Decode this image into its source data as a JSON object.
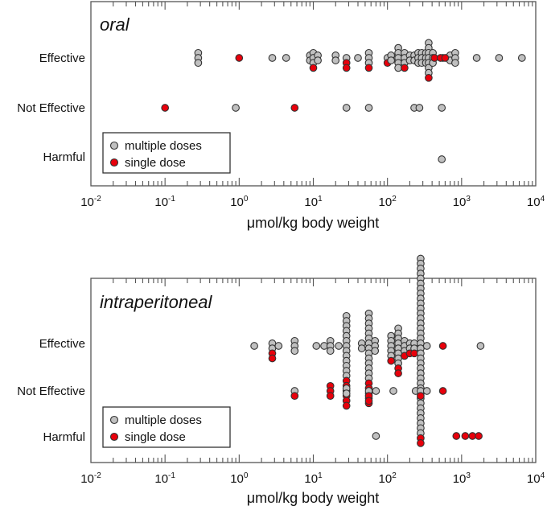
{
  "colors": {
    "multiple": "#c0c0c0",
    "single": "#e8000b",
    "outline": "#333333"
  },
  "chart_data": [
    {
      "type": "scatter",
      "id": "oral",
      "title": "oral",
      "xlabel": "μmol/kg body weight",
      "xscale": "log",
      "xlim": [
        0.01,
        10000
      ],
      "xtick_labels": [
        {
          "base": "10",
          "exp": "-2"
        },
        {
          "base": "10",
          "exp": "-1"
        },
        {
          "base": "10",
          "exp": "0"
        },
        {
          "base": "10",
          "exp": "1"
        },
        {
          "base": "10",
          "exp": "2"
        },
        {
          "base": "10",
          "exp": "3"
        },
        {
          "base": "10",
          "exp": "4"
        }
      ],
      "categories": [
        "Effective",
        "Not Effective",
        "Harmful"
      ],
      "legend": {
        "position": "lower-left",
        "entries": [
          {
            "label": "multiple doses",
            "series": "multiple"
          },
          {
            "label": "single dose",
            "series": "single"
          }
        ]
      },
      "grid": false,
      "series": [
        {
          "name": "multiple doses",
          "key": "multiple",
          "points": [
            {
              "category": "Effective",
              "x": 0.28,
              "count": 3
            },
            {
              "category": "Effective",
              "x": 2.8,
              "count": 1
            },
            {
              "category": "Effective",
              "x": 4.3,
              "count": 1
            },
            {
              "category": "Effective",
              "x": 9,
              "count": 2
            },
            {
              "category": "Effective",
              "x": 10,
              "count": 3
            },
            {
              "category": "Effective",
              "x": 11.5,
              "count": 2
            },
            {
              "category": "Effective",
              "x": 20,
              "count": 2
            },
            {
              "category": "Effective",
              "x": 28,
              "count": 1
            },
            {
              "category": "Effective",
              "x": 40,
              "count": 1
            },
            {
              "category": "Effective",
              "x": 56,
              "count": 3
            },
            {
              "category": "Effective",
              "x": 100,
              "count": 1
            },
            {
              "category": "Effective",
              "x": 112,
              "count": 2
            },
            {
              "category": "Effective",
              "x": 140,
              "count": 5
            },
            {
              "category": "Effective",
              "x": 170,
              "count": 3
            },
            {
              "category": "Effective",
              "x": 200,
              "count": 2
            },
            {
              "category": "Effective",
              "x": 230,
              "count": 2
            },
            {
              "category": "Effective",
              "x": 260,
              "count": 3
            },
            {
              "category": "Effective",
              "x": 290,
              "count": 3
            },
            {
              "category": "Effective",
              "x": 330,
              "count": 3
            },
            {
              "category": "Effective",
              "x": 360,
              "count": 7
            },
            {
              "category": "Effective",
              "x": 410,
              "count": 3
            },
            {
              "category": "Effective",
              "x": 560,
              "count": 1
            },
            {
              "category": "Effective",
              "x": 700,
              "count": 2
            },
            {
              "category": "Effective",
              "x": 820,
              "count": 3
            },
            {
              "category": "Effective",
              "x": 1600,
              "count": 1
            },
            {
              "category": "Effective",
              "x": 3200,
              "count": 1
            },
            {
              "category": "Effective",
              "x": 6500,
              "count": 1
            },
            {
              "category": "Not Effective",
              "x": 0.9,
              "count": 1
            },
            {
              "category": "Not Effective",
              "x": 28,
              "count": 1
            },
            {
              "category": "Not Effective",
              "x": 56,
              "count": 1
            },
            {
              "category": "Not Effective",
              "x": 230,
              "count": 1
            },
            {
              "category": "Not Effective",
              "x": 270,
              "count": 1
            },
            {
              "category": "Not Effective",
              "x": 540,
              "count": 1
            },
            {
              "category": "Harmful",
              "x": 540,
              "count": 1
            }
          ]
        },
        {
          "name": "single dose",
          "key": "single",
          "points": [
            {
              "category": "Effective",
              "x": 1.0,
              "count": 1
            },
            {
              "category": "Effective",
              "x": 10,
              "count": 1
            },
            {
              "category": "Effective",
              "x": 28,
              "count": 2
            },
            {
              "category": "Effective",
              "x": 56,
              "count": 1
            },
            {
              "category": "Effective",
              "x": 100,
              "count": 1
            },
            {
              "category": "Effective",
              "x": 170,
              "count": 1
            },
            {
              "category": "Effective",
              "x": 360,
              "count": 1
            },
            {
              "category": "Effective",
              "x": 430,
              "count": 1
            },
            {
              "category": "Effective",
              "x": 520,
              "count": 1
            },
            {
              "category": "Effective",
              "x": 600,
              "count": 1
            },
            {
              "category": "Not Effective",
              "x": 0.1,
              "count": 1
            },
            {
              "category": "Not Effective",
              "x": 5.6,
              "count": 1
            }
          ]
        }
      ]
    },
    {
      "type": "scatter",
      "id": "intraperitoneal",
      "title": "intraperitoneal",
      "xlabel": "μmol/kg body weight",
      "xscale": "log",
      "xlim": [
        0.01,
        10000
      ],
      "xtick_labels": [
        {
          "base": "10",
          "exp": "-2"
        },
        {
          "base": "10",
          "exp": "-1"
        },
        {
          "base": "10",
          "exp": "0"
        },
        {
          "base": "10",
          "exp": "1"
        },
        {
          "base": "10",
          "exp": "2"
        },
        {
          "base": "10",
          "exp": "3"
        },
        {
          "base": "10",
          "exp": "4"
        }
      ],
      "categories": [
        "Effective",
        "Not Effective",
        "Harmful"
      ],
      "legend": {
        "position": "lower-left",
        "entries": [
          {
            "label": "multiple doses",
            "series": "multiple"
          },
          {
            "label": "single dose",
            "series": "single"
          }
        ]
      },
      "grid": false,
      "series": [
        {
          "name": "multiple doses",
          "key": "multiple",
          "points": [
            {
              "category": "Effective",
              "x": 1.6,
              "count": 1
            },
            {
              "category": "Effective",
              "x": 2.8,
              "count": 2
            },
            {
              "category": "Effective",
              "x": 3.4,
              "count": 1
            },
            {
              "category": "Effective",
              "x": 5.6,
              "count": 3
            },
            {
              "category": "Effective",
              "x": 11,
              "count": 1
            },
            {
              "category": "Effective",
              "x": 14,
              "count": 1
            },
            {
              "category": "Effective",
              "x": 17,
              "count": 3
            },
            {
              "category": "Effective",
              "x": 22,
              "count": 1
            },
            {
              "category": "Effective",
              "x": 28,
              "count": 13
            },
            {
              "category": "Effective",
              "x": 45,
              "count": 2
            },
            {
              "category": "Effective",
              "x": 56,
              "count": 14
            },
            {
              "category": "Effective",
              "x": 68,
              "count": 3
            },
            {
              "category": "Effective",
              "x": 112,
              "count": 5
            },
            {
              "category": "Effective",
              "x": 140,
              "count": 8
            },
            {
              "category": "Effective",
              "x": 170,
              "count": 3
            },
            {
              "category": "Effective",
              "x": 200,
              "count": 2
            },
            {
              "category": "Effective",
              "x": 230,
              "count": 2
            },
            {
              "category": "Effective",
              "x": 280,
              "count": 36
            },
            {
              "category": "Effective",
              "x": 340,
              "count": 1
            },
            {
              "category": "Effective",
              "x": 1800,
              "count": 1
            },
            {
              "category": "Not Effective",
              "x": 5.6,
              "count": 1
            },
            {
              "category": "Not Effective",
              "x": 28,
              "count": 2
            },
            {
              "category": "Not Effective",
              "x": 56,
              "count": 1
            },
            {
              "category": "Not Effective",
              "x": 70,
              "count": 1
            },
            {
              "category": "Not Effective",
              "x": 120,
              "count": 1
            },
            {
              "category": "Not Effective",
              "x": 240,
              "count": 1
            },
            {
              "category": "Not Effective",
              "x": 280,
              "count": 1
            },
            {
              "category": "Not Effective",
              "x": 340,
              "count": 1
            },
            {
              "category": "Harmful",
              "x": 70,
              "count": 1
            }
          ]
        },
        {
          "name": "single dose",
          "key": "single",
          "points": [
            {
              "category": "Effective",
              "x": 2.8,
              "count": 2
            },
            {
              "category": "Effective",
              "x": 28,
              "count": 6
            },
            {
              "category": "Effective",
              "x": 56,
              "count": 5
            },
            {
              "category": "Effective",
              "x": 112,
              "count": 1
            },
            {
              "category": "Effective",
              "x": 140,
              "count": 2
            },
            {
              "category": "Effective",
              "x": 170,
              "count": 1
            },
            {
              "category": "Effective",
              "x": 200,
              "count": 1
            },
            {
              "category": "Effective",
              "x": 230,
              "count": 1
            },
            {
              "category": "Effective",
              "x": 280,
              "count": 2
            },
            {
              "category": "Effective",
              "x": 560,
              "count": 1
            },
            {
              "category": "Not Effective",
              "x": 5.6,
              "count": 1
            },
            {
              "category": "Not Effective",
              "x": 17,
              "count": 3
            },
            {
              "category": "Not Effective",
              "x": 56,
              "count": 2
            },
            {
              "category": "Not Effective",
              "x": 280,
              "count": 1
            },
            {
              "category": "Not Effective",
              "x": 560,
              "count": 1
            },
            {
              "category": "Harmful",
              "x": 850,
              "count": 1
            },
            {
              "category": "Harmful",
              "x": 1120,
              "count": 1
            },
            {
              "category": "Harmful",
              "x": 1400,
              "count": 1
            },
            {
              "category": "Harmful",
              "x": 1700,
              "count": 1
            }
          ]
        }
      ]
    }
  ]
}
